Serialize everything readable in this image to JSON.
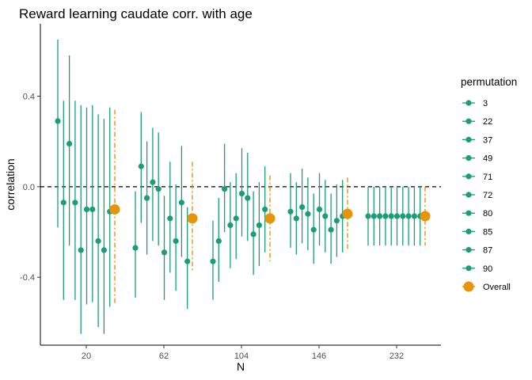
{
  "chart_data": {
    "type": "scatter",
    "title": "Reward learning caudate corr. with age",
    "xlabel": "N",
    "ylabel": "correlation",
    "categories": [
      "20",
      "62",
      "104",
      "146",
      "232"
    ],
    "y_ticks": [
      -0.4,
      0.0,
      0.4
    ],
    "y_tick_labels": [
      "-0.4",
      "0.0",
      "0.4"
    ],
    "ylim": [
      -0.7,
      0.72
    ],
    "reference_line": 0.0,
    "legend_title": "permutation",
    "legend_placement": "right",
    "grid": false,
    "colors": {
      "permutation": "#1b9e77",
      "overall": "#e6950a",
      "reference": "#000000"
    },
    "permutations": [
      "3",
      "22",
      "37",
      "49",
      "71",
      "72",
      "80",
      "85",
      "87",
      "90"
    ],
    "overall_label": "Overall",
    "series": [
      {
        "category": "20",
        "points": [
          {
            "y": 0.29,
            "lo": -0.18,
            "hi": 0.65
          },
          {
            "y": -0.07,
            "lo": -0.5,
            "hi": 0.38
          },
          {
            "y": 0.19,
            "lo": -0.26,
            "hi": 0.58
          },
          {
            "y": -0.07,
            "lo": -0.5,
            "hi": 0.38
          },
          {
            "y": -0.28,
            "lo": -0.65,
            "hi": 0.36
          },
          {
            "y": -0.1,
            "lo": -0.52,
            "hi": 0.35
          },
          {
            "y": -0.1,
            "lo": -0.51,
            "hi": 0.36
          },
          {
            "y": -0.24,
            "lo": -0.62,
            "hi": 0.32
          },
          {
            "y": -0.28,
            "lo": -0.65,
            "hi": 0.3
          },
          {
            "y": -0.11,
            "lo": -0.53,
            "hi": 0.35
          }
        ],
        "overall": {
          "y": -0.1,
          "lo": -0.52,
          "hi": 0.34
        }
      },
      {
        "category": "62",
        "points": [
          {
            "y": -0.27,
            "lo": -0.49,
            "hi": -0.02
          },
          {
            "y": 0.09,
            "lo": -0.16,
            "hi": 0.33
          },
          {
            "y": -0.05,
            "lo": -0.3,
            "hi": 0.2
          },
          {
            "y": 0.02,
            "lo": -0.24,
            "hi": 0.26
          },
          {
            "y": -0.01,
            "lo": -0.26,
            "hi": 0.24
          },
          {
            "y": -0.29,
            "lo": -0.5,
            "hi": -0.04
          },
          {
            "y": -0.14,
            "lo": -0.38,
            "hi": 0.11
          },
          {
            "y": -0.24,
            "lo": -0.46,
            "hi": 0.01
          },
          {
            "y": -0.07,
            "lo": -0.31,
            "hi": 0.18
          },
          {
            "y": -0.33,
            "lo": -0.54,
            "hi": -0.09
          }
        ],
        "overall": {
          "y": -0.14,
          "lo": -0.38,
          "hi": 0.11
        }
      },
      {
        "category": "104",
        "points": [
          {
            "y": -0.33,
            "lo": -0.5,
            "hi": -0.15
          },
          {
            "y": -0.24,
            "lo": -0.42,
            "hi": -0.05
          },
          {
            "y": -0.01,
            "lo": -0.2,
            "hi": 0.19
          },
          {
            "y": -0.17,
            "lo": -0.36,
            "hi": 0.02
          },
          {
            "y": -0.14,
            "lo": -0.32,
            "hi": 0.06
          },
          {
            "y": -0.03,
            "lo": -0.22,
            "hi": 0.17
          },
          {
            "y": -0.05,
            "lo": -0.24,
            "hi": 0.15
          },
          {
            "y": -0.21,
            "lo": -0.39,
            "hi": -0.02
          },
          {
            "y": -0.17,
            "lo": -0.35,
            "hi": 0.02
          },
          {
            "y": -0.1,
            "lo": -0.29,
            "hi": 0.09
          }
        ],
        "overall": {
          "y": -0.14,
          "lo": -0.33,
          "hi": 0.05
        }
      },
      {
        "category": "146",
        "points": [
          {
            "y": -0.11,
            "lo": -0.27,
            "hi": 0.06
          },
          {
            "y": -0.14,
            "lo": -0.3,
            "hi": 0.02
          },
          {
            "y": -0.09,
            "lo": -0.25,
            "hi": 0.08
          },
          {
            "y": -0.12,
            "lo": -0.28,
            "hi": 0.04
          },
          {
            "y": -0.19,
            "lo": -0.34,
            "hi": -0.03
          },
          {
            "y": -0.1,
            "lo": -0.26,
            "hi": 0.06
          },
          {
            "y": -0.13,
            "lo": -0.29,
            "hi": 0.03
          },
          {
            "y": -0.19,
            "lo": -0.34,
            "hi": -0.03
          },
          {
            "y": -0.15,
            "lo": -0.31,
            "hi": 0.01
          },
          {
            "y": -0.13,
            "lo": -0.29,
            "hi": 0.03
          }
        ],
        "overall": {
          "y": -0.12,
          "lo": -0.28,
          "hi": 0.04
        }
      },
      {
        "category": "232",
        "points": [
          {
            "y": -0.13,
            "lo": -0.26,
            "hi": 0.0
          },
          {
            "y": -0.13,
            "lo": -0.26,
            "hi": 0.0
          },
          {
            "y": -0.13,
            "lo": -0.26,
            "hi": 0.0
          },
          {
            "y": -0.13,
            "lo": -0.26,
            "hi": 0.0
          },
          {
            "y": -0.13,
            "lo": -0.26,
            "hi": 0.0
          },
          {
            "y": -0.13,
            "lo": -0.26,
            "hi": 0.0
          },
          {
            "y": -0.13,
            "lo": -0.26,
            "hi": 0.0
          },
          {
            "y": -0.13,
            "lo": -0.26,
            "hi": 0.0
          },
          {
            "y": -0.13,
            "lo": -0.26,
            "hi": 0.0
          },
          {
            "y": -0.13,
            "lo": -0.26,
            "hi": 0.0
          }
        ],
        "overall": {
          "y": -0.13,
          "lo": -0.26,
          "hi": 0.0
        }
      }
    ]
  }
}
